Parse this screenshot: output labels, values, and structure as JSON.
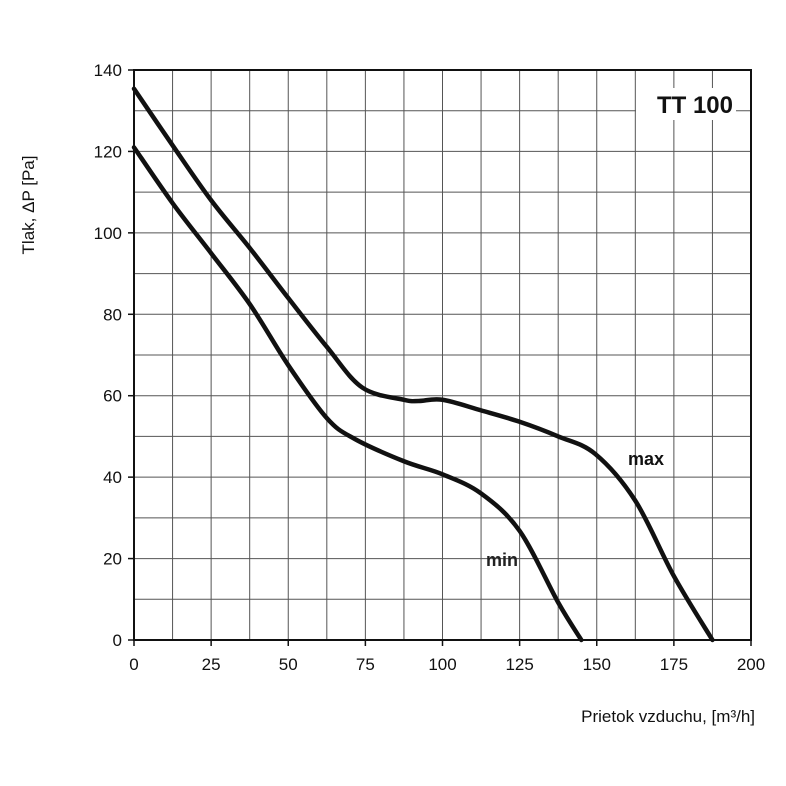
{
  "chart_data": {
    "type": "line",
    "title": "TT 100",
    "xlabel": "Prietok vzduchu, [m³/h]",
    "ylabel": "Tlak,  ΔP [Pa]",
    "xlim": [
      0,
      200
    ],
    "ylim": [
      0,
      140
    ],
    "xticks": [
      "0",
      "25",
      "50",
      "75",
      "100",
      "125",
      "150",
      "175",
      "200"
    ],
    "yticks": [
      "0",
      "20",
      "40",
      "60",
      "80",
      "100",
      "120",
      "140"
    ],
    "grid": true,
    "line_color": "#111111",
    "series": [
      {
        "name": "max",
        "x": [
          0,
          12.5,
          25,
          37.7,
          50,
          62.5,
          74,
          87.5,
          92.3,
          100,
          112.5,
          125,
          137.5,
          149.5,
          162.5,
          175,
          187.5
        ],
        "y": [
          135.4,
          121.5,
          108,
          96.1,
          84,
          72,
          62,
          59,
          58.7,
          59,
          56.4,
          53.6,
          50,
          45.7,
          34.2,
          15.7,
          0
        ]
      },
      {
        "name": "min",
        "x": [
          0,
          12.6,
          25,
          37.7,
          50,
          62.5,
          71.5,
          87.5,
          100,
          112.5,
          125,
          137.5,
          145
        ],
        "y": [
          121,
          107.2,
          95,
          82.3,
          67.5,
          54.5,
          49.4,
          43.9,
          40.7,
          36,
          26.8,
          9.2,
          0
        ]
      }
    ]
  }
}
